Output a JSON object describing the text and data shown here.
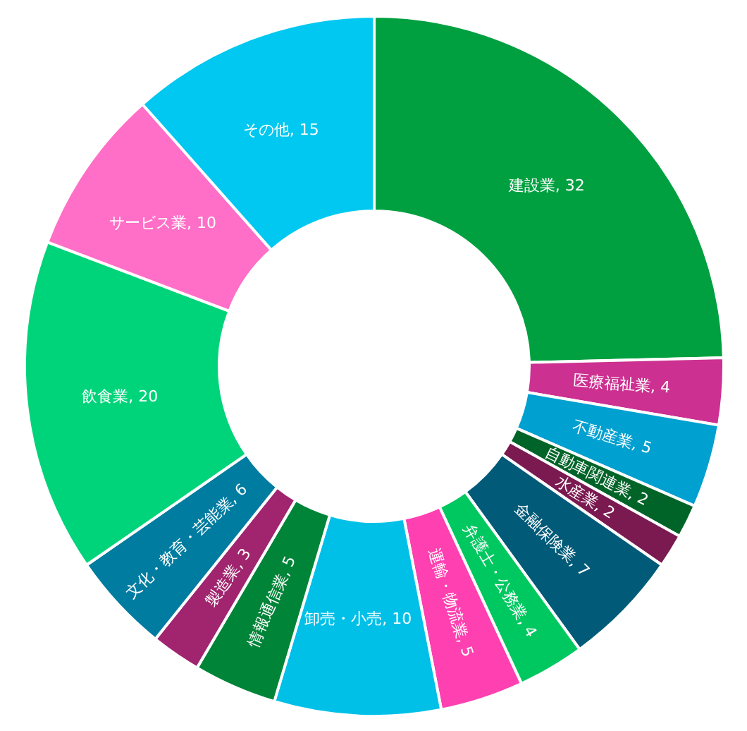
{
  "chart_data": {
    "type": "donut",
    "categories": [
      "建設業",
      "医療福祉業",
      "不動産業",
      "自動車関連業",
      "水産業",
      "金融保険業",
      "弁護士・公務業",
      "運輸・物流業",
      "卸売・小売",
      "情報通信業",
      "製造業",
      "文化・教育・芸能業",
      "飲食業",
      "サービス業",
      "その他"
    ],
    "values": [
      32,
      4,
      5,
      2,
      2,
      7,
      4,
      5,
      10,
      5,
      3,
      6,
      20,
      10,
      15
    ],
    "value_labels": [
      ", 32",
      ", 4",
      ", 5",
      ", 2",
      ", 2",
      ", 7",
      ", 4",
      ", 5",
      ", 10",
      ", 5",
      ", 3",
      ", 6",
      ", 20",
      ", 10",
      ", 15"
    ],
    "colors": [
      "#00a040",
      "#cc3090",
      "#00a0d0",
      "#006428",
      "#7a1a50",
      "#005a78",
      "#00c860",
      "#ff40b0",
      "#00c0e8",
      "#008438",
      "#a0246e",
      "#007ca0",
      "#00d47a",
      "#ff6ec7",
      "#00c8f0"
    ]
  }
}
